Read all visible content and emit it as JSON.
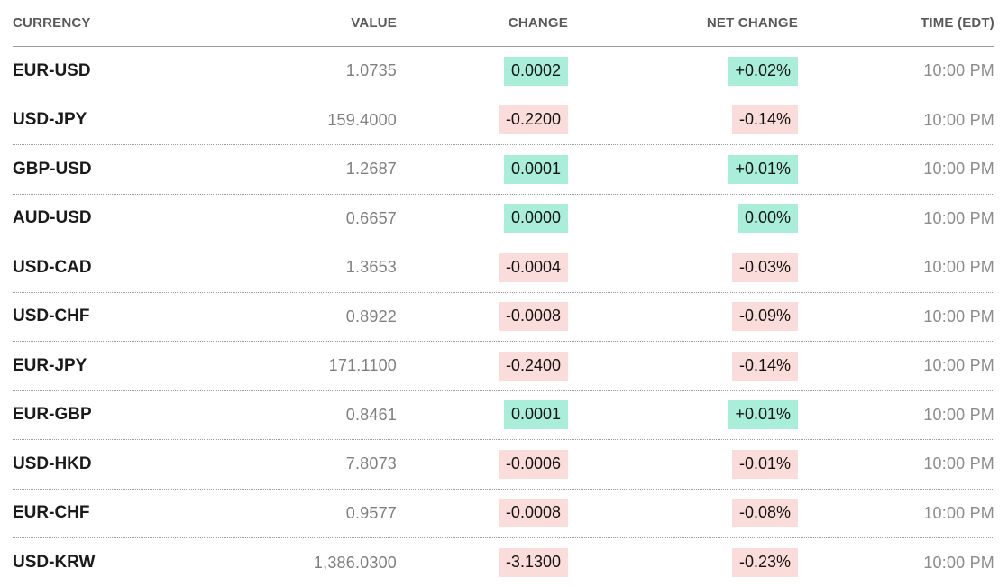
{
  "table": {
    "columns": [
      {
        "key": "currency",
        "label": "CURRENCY"
      },
      {
        "key": "value",
        "label": "VALUE"
      },
      {
        "key": "change",
        "label": "CHANGE"
      },
      {
        "key": "net_change",
        "label": "NET CHANGE"
      },
      {
        "key": "time",
        "label": "TIME (EDT)"
      }
    ],
    "rows": [
      {
        "currency": "EUR-USD",
        "value": "1.0735",
        "change": "0.0002",
        "net_change": "+0.02%",
        "direction": "up",
        "time": "10:00 PM"
      },
      {
        "currency": "USD-JPY",
        "value": "159.4000",
        "change": "-0.2200",
        "net_change": "-0.14%",
        "direction": "down",
        "time": "10:00 PM"
      },
      {
        "currency": "GBP-USD",
        "value": "1.2687",
        "change": "0.0001",
        "net_change": "+0.01%",
        "direction": "up",
        "time": "10:00 PM"
      },
      {
        "currency": "AUD-USD",
        "value": "0.6657",
        "change": "0.0000",
        "net_change": "0.00%",
        "direction": "up",
        "time": "10:00 PM"
      },
      {
        "currency": "USD-CAD",
        "value": "1.3653",
        "change": "-0.0004",
        "net_change": "-0.03%",
        "direction": "down",
        "time": "10:00 PM"
      },
      {
        "currency": "USD-CHF",
        "value": "0.8922",
        "change": "-0.0008",
        "net_change": "-0.09%",
        "direction": "down",
        "time": "10:00 PM"
      },
      {
        "currency": "EUR-JPY",
        "value": "171.1100",
        "change": "-0.2400",
        "net_change": "-0.14%",
        "direction": "down",
        "time": "10:00 PM"
      },
      {
        "currency": "EUR-GBP",
        "value": "0.8461",
        "change": "0.0001",
        "net_change": "+0.01%",
        "direction": "up",
        "time": "10:00 PM"
      },
      {
        "currency": "USD-HKD",
        "value": "7.8073",
        "change": "-0.0006",
        "net_change": "-0.01%",
        "direction": "down",
        "time": "10:00 PM"
      },
      {
        "currency": "EUR-CHF",
        "value": "0.9577",
        "change": "-0.0008",
        "net_change": "-0.08%",
        "direction": "down",
        "time": "10:00 PM"
      },
      {
        "currency": "USD-KRW",
        "value": "1,386.0300",
        "change": "-3.1300",
        "net_change": "-0.23%",
        "direction": "down",
        "time": "10:00 PM"
      }
    ]
  },
  "colors": {
    "positive_bg": "#a8eed8",
    "negative_bg": "#fadcda",
    "header_text": "#59595b",
    "pair_text": "#1a1a1a",
    "value_text": "#7f7f7f",
    "time_text": "#8c8c8c"
  }
}
